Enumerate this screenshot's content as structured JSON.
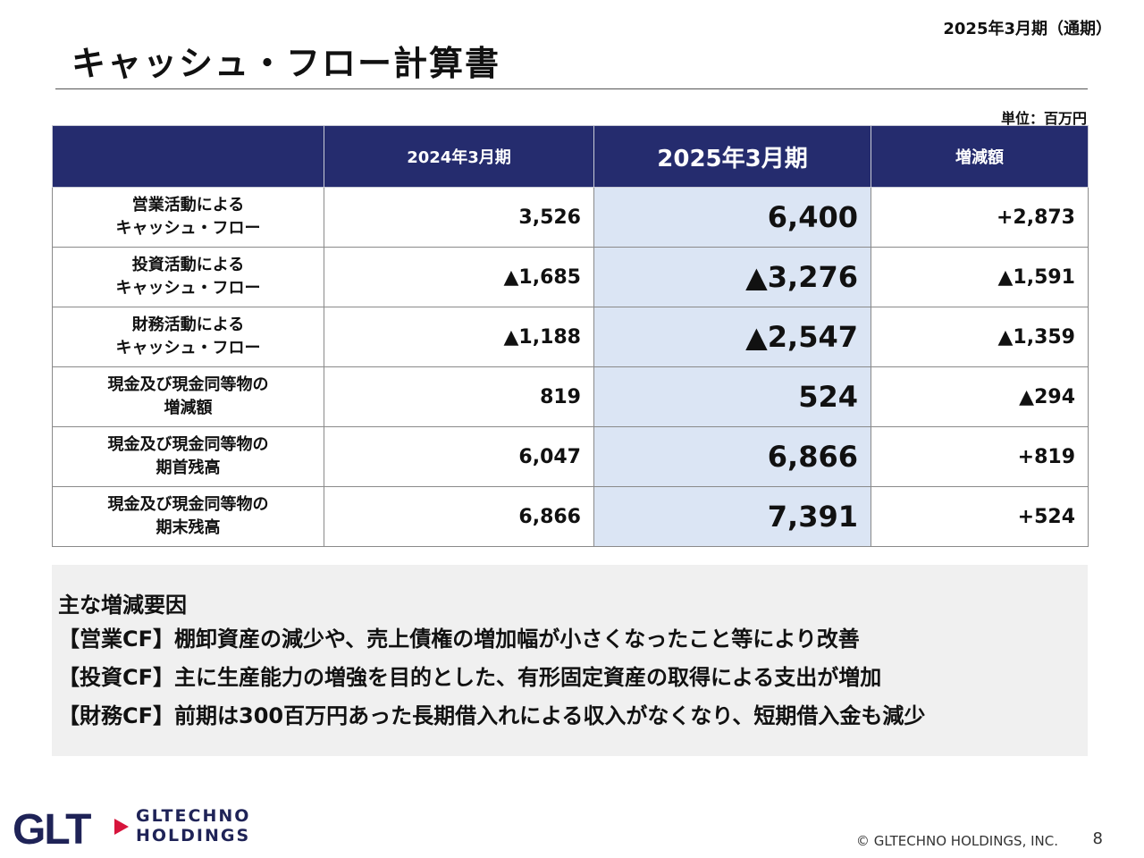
{
  "header": {
    "period": "2025年3月期（通期）",
    "title": "キャッシュ・フロー計算書",
    "unit": "単位：百万円"
  },
  "table": {
    "columns": [
      "",
      "2024年3月期",
      "2025年3月期",
      "増減額"
    ],
    "rows": [
      {
        "label1": "営業活動による",
        "label2": "キャッシュ・フロー",
        "prev": "3,526",
        "cur": "6,400",
        "diff": "+2,873"
      },
      {
        "label1": "投資活動による",
        "label2": "キャッシュ・フロー",
        "prev": "▲1,685",
        "cur": "▲3,276",
        "diff": "▲1,591"
      },
      {
        "label1": "財務活動による",
        "label2": "キャッシュ・フロー",
        "prev": "▲1,188",
        "cur": "▲2,547",
        "diff": "▲1,359"
      },
      {
        "label1": "現金及び現金同等物の",
        "label2": "増減額",
        "prev": "819",
        "cur": "524",
        "diff": "▲294"
      },
      {
        "label1": "現金及び現金同等物の",
        "label2": "期首残高",
        "prev": "6,047",
        "cur": "6,866",
        "diff": "+819"
      },
      {
        "label1": "現金及び現金同等物の",
        "label2": "期末残高",
        "prev": "6,866",
        "cur": "7,391",
        "diff": "+524"
      }
    ]
  },
  "factors": {
    "title": "主な増減要因",
    "items": [
      "【営業CF】棚卸資産の減少や、売上債権の増加幅が小さくなったこと等により改善",
      "【投資CF】主に生産能力の増強を目的とした、有形固定資産の取得による支出が増加",
      "【財務CF】前期は300百万円あった長期借入れによる収入がなくなり、短期借入金も減少"
    ]
  },
  "footer": {
    "logo_mark": "GLT",
    "logo_line1": "GLTECHNO",
    "logo_line2": "HOLDINGS",
    "copyright": "© GLTECHNO HOLDINGS, INC.",
    "page_number": "8"
  },
  "colors": {
    "header_bg": "#252c6e",
    "highlight_col": "#dbe5f4",
    "logo_red": "#d7143c",
    "logo_navy": "#1f2357"
  }
}
